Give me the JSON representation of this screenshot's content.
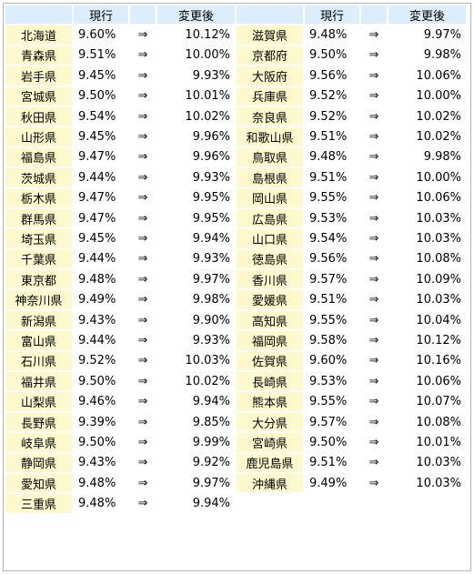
{
  "headers": {
    "current": "現行",
    "after": "変更後"
  },
  "arrow": "⇒",
  "left": [
    {
      "pref": "北海道",
      "cur": "9.60%",
      "next": "10.12%"
    },
    {
      "pref": "青森県",
      "cur": "9.51%",
      "next": "10.00%"
    },
    {
      "pref": "岩手県",
      "cur": "9.45%",
      "next": "9.93%"
    },
    {
      "pref": "宮城県",
      "cur": "9.50%",
      "next": "10.01%"
    },
    {
      "pref": "秋田県",
      "cur": "9.54%",
      "next": "10.02%"
    },
    {
      "pref": "山形県",
      "cur": "9.45%",
      "next": "9.96%"
    },
    {
      "pref": "福島県",
      "cur": "9.47%",
      "next": "9.96%"
    },
    {
      "pref": "茨城県",
      "cur": "9.44%",
      "next": "9.93%"
    },
    {
      "pref": "栃木県",
      "cur": "9.47%",
      "next": "9.95%"
    },
    {
      "pref": "群馬県",
      "cur": "9.47%",
      "next": "9.95%"
    },
    {
      "pref": "埼玉県",
      "cur": "9.45%",
      "next": "9.94%"
    },
    {
      "pref": "千葉県",
      "cur": "9.44%",
      "next": "9.93%"
    },
    {
      "pref": "東京都",
      "cur": "9.48%",
      "next": "9.97%"
    },
    {
      "pref": "神奈川県",
      "cur": "9.49%",
      "next": "9.98%"
    },
    {
      "pref": "新潟県",
      "cur": "9.43%",
      "next": "9.90%"
    },
    {
      "pref": "富山県",
      "cur": "9.44%",
      "next": "9.93%"
    },
    {
      "pref": "石川県",
      "cur": "9.52%",
      "next": "10.03%"
    },
    {
      "pref": "福井県",
      "cur": "9.50%",
      "next": "10.02%"
    },
    {
      "pref": "山梨県",
      "cur": "9.46%",
      "next": "9.94%"
    },
    {
      "pref": "長野県",
      "cur": "9.39%",
      "next": "9.85%"
    },
    {
      "pref": "岐阜県",
      "cur": "9.50%",
      "next": "9.99%"
    },
    {
      "pref": "静岡県",
      "cur": "9.43%",
      "next": "9.92%"
    },
    {
      "pref": "愛知県",
      "cur": "9.48%",
      "next": "9.97%"
    },
    {
      "pref": "三重県",
      "cur": "9.48%",
      "next": "9.94%"
    }
  ],
  "right": [
    {
      "pref": "滋賀県",
      "cur": "9.48%",
      "next": "9.97%"
    },
    {
      "pref": "京都府",
      "cur": "9.50%",
      "next": "9.98%"
    },
    {
      "pref": "大阪府",
      "cur": "9.56%",
      "next": "10.06%"
    },
    {
      "pref": "兵庫県",
      "cur": "9.52%",
      "next": "10.00%"
    },
    {
      "pref": "奈良県",
      "cur": "9.52%",
      "next": "10.02%"
    },
    {
      "pref": "和歌山県",
      "cur": "9.51%",
      "next": "10.02%"
    },
    {
      "pref": "鳥取県",
      "cur": "9.48%",
      "next": "9.98%"
    },
    {
      "pref": "島根県",
      "cur": "9.51%",
      "next": "10.00%"
    },
    {
      "pref": "岡山県",
      "cur": "9.55%",
      "next": "10.06%"
    },
    {
      "pref": "広島県",
      "cur": "9.53%",
      "next": "10.03%"
    },
    {
      "pref": "山口県",
      "cur": "9.54%",
      "next": "10.03%"
    },
    {
      "pref": "徳島県",
      "cur": "9.56%",
      "next": "10.08%"
    },
    {
      "pref": "香川県",
      "cur": "9.57%",
      "next": "10.09%"
    },
    {
      "pref": "愛媛県",
      "cur": "9.51%",
      "next": "10.03%"
    },
    {
      "pref": "高知県",
      "cur": "9.55%",
      "next": "10.04%"
    },
    {
      "pref": "福岡県",
      "cur": "9.58%",
      "next": "10.12%"
    },
    {
      "pref": "佐賀県",
      "cur": "9.60%",
      "next": "10.16%"
    },
    {
      "pref": "長崎県",
      "cur": "9.53%",
      "next": "10.06%"
    },
    {
      "pref": "熊本県",
      "cur": "9.55%",
      "next": "10.07%"
    },
    {
      "pref": "大分県",
      "cur": "9.57%",
      "next": "10.08%"
    },
    {
      "pref": "宮崎県",
      "cur": "9.50%",
      "next": "10.01%"
    },
    {
      "pref": "鹿児島県",
      "cur": "9.51%",
      "next": "10.03%"
    },
    {
      "pref": "沖縄県",
      "cur": "9.49%",
      "next": "10.03%"
    }
  ]
}
